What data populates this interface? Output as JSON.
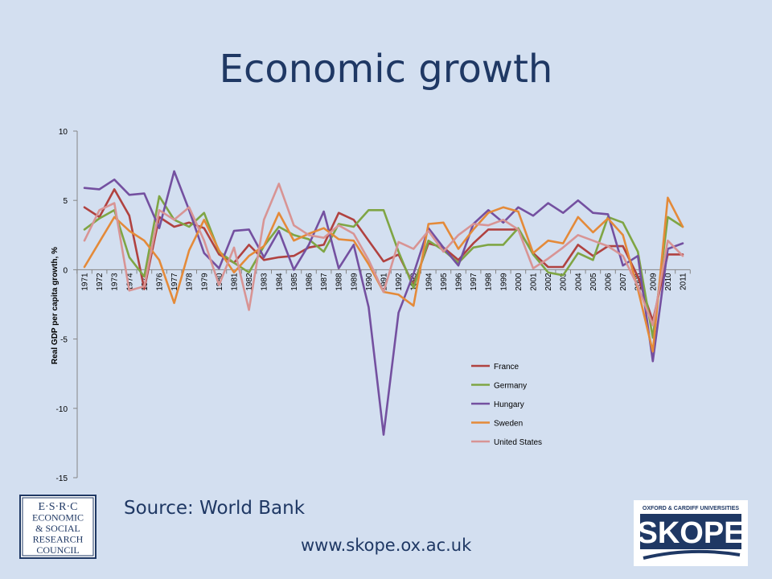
{
  "slide": {
    "title": "Economic growth",
    "source": "Source: World Bank",
    "website": "www.skope.ox.ac.uk"
  },
  "logos": {
    "esrc": {
      "lines": [
        "E·S·R·C",
        "ECONOMIC",
        "& SOCIAL",
        "RESEARCH",
        "COUNCIL"
      ],
      "color": "#1f3864"
    },
    "skope": {
      "top_text": "OXFORD & CARDIFF UNIVERSITIES",
      "name": "SKOPE",
      "color": "#1f3864"
    }
  },
  "chart_data": {
    "type": "line",
    "title": "",
    "xlabel": "",
    "ylabel": "Real GDP per capita growth, %",
    "ylim": [
      -15,
      10
    ],
    "yticks": [
      -15,
      -10,
      -5,
      0,
      5,
      10
    ],
    "grid": false,
    "legend_position": "bottom-right",
    "categories": [
      "1971",
      "1972",
      "1973",
      "1974",
      "1975",
      "1976",
      "1977",
      "1978",
      "1979",
      "1980",
      "1981",
      "1982",
      "1983",
      "1984",
      "1985",
      "1986",
      "1987",
      "1988",
      "1989",
      "1990",
      "1991",
      "1992",
      "1993",
      "1994",
      "1995",
      "1996",
      "1997",
      "1998",
      "1999",
      "2000",
      "2001",
      "2002",
      "2003",
      "2004",
      "2005",
      "2006",
      "2007",
      "2008",
      "2009",
      "2010",
      "2011"
    ],
    "series": [
      {
        "name": "France",
        "color": "#b04240",
        "values": [
          4.5,
          3.8,
          5.8,
          3.9,
          -1.4,
          3.8,
          3.1,
          3.4,
          3.0,
          1.1,
          0.5,
          1.8,
          0.7,
          0.9,
          1.0,
          1.6,
          1.8,
          4.1,
          3.6,
          2.1,
          0.6,
          1.1,
          -1.1,
          1.9,
          1.6,
          0.7,
          1.9,
          2.9,
          2.9,
          2.9,
          1.2,
          0.2,
          0.2,
          1.8,
          1.0,
          1.7,
          1.7,
          -0.5,
          -3.7,
          1.1,
          1.1
        ]
      },
      {
        "name": "Germany",
        "color": "#7fa544",
        "values": [
          2.9,
          3.7,
          4.3,
          0.9,
          -0.5,
          5.3,
          3.6,
          3.1,
          4.1,
          1.3,
          0.5,
          -0.2,
          1.7,
          3.1,
          2.5,
          2.2,
          1.3,
          3.3,
          3.1,
          4.3,
          4.3,
          1.3,
          -1.3,
          2.1,
          1.4,
          0.5,
          1.6,
          1.8,
          1.8,
          3.0,
          1.1,
          -0.2,
          -0.4,
          1.2,
          0.7,
          3.8,
          3.4,
          1.3,
          -4.9,
          3.8,
          3.1
        ]
      },
      {
        "name": "Hungary",
        "color": "#7450a0",
        "values": [
          5.9,
          5.8,
          6.5,
          5.4,
          5.5,
          3.0,
          7.1,
          4.3,
          1.2,
          0.1,
          2.8,
          2.9,
          0.9,
          2.8,
          0.0,
          1.8,
          4.2,
          0.1,
          1.8,
          -2.7,
          -11.9,
          -3.1,
          -0.3,
          3.0,
          1.6,
          0.3,
          3.3,
          4.3,
          3.4,
          4.5,
          3.9,
          4.8,
          4.1,
          5.0,
          4.1,
          4.0,
          0.3,
          1.0,
          -6.6,
          1.5,
          1.9
        ]
      },
      {
        "name": "Sweden",
        "color": "#e48a39",
        "values": [
          0.2,
          2.0,
          3.8,
          2.8,
          2.1,
          0.7,
          -2.4,
          1.4,
          3.6,
          1.4,
          -0.2,
          1.0,
          1.7,
          4.1,
          2.1,
          2.6,
          3.0,
          2.2,
          2.1,
          0.4,
          -1.6,
          -1.8,
          -2.6,
          3.3,
          3.4,
          1.5,
          2.9,
          4.1,
          4.5,
          4.2,
          1.2,
          2.1,
          1.9,
          3.8,
          2.7,
          3.7,
          2.5,
          -1.4,
          -5.9,
          5.2,
          3.1
        ]
      },
      {
        "name": "United States",
        "color": "#d89494",
        "values": [
          2.1,
          4.3,
          4.8,
          -1.5,
          -1.2,
          4.3,
          3.6,
          4.5,
          2.1,
          -1.1,
          1.6,
          -2.9,
          3.6,
          6.2,
          3.2,
          2.5,
          2.3,
          3.2,
          2.6,
          0.7,
          -1.6,
          2.0,
          1.5,
          2.8,
          1.3,
          2.5,
          3.3,
          3.2,
          3.6,
          2.9,
          0.1,
          0.8,
          1.6,
          2.5,
          2.1,
          1.7,
          1.0,
          -1.2,
          -4.0,
          2.1,
          1.0
        ]
      }
    ]
  }
}
